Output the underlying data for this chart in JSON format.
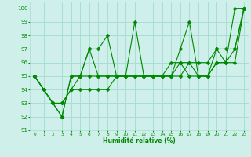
{
  "title": "",
  "xlabel": "Humidité relative (%)",
  "ylabel": "",
  "bg_color": "#cff0ea",
  "grid_color": "#a8ddd6",
  "line_color": "#008800",
  "marker": "D",
  "markersize": 2.5,
  "linewidth": 0.8,
  "ylim": [
    91,
    100.5
  ],
  "xlim": [
    -0.5,
    23.5
  ],
  "yticks": [
    91,
    92,
    93,
    94,
    95,
    96,
    97,
    98,
    99,
    100
  ],
  "xticks": [
    0,
    1,
    2,
    3,
    4,
    5,
    6,
    7,
    8,
    9,
    10,
    11,
    12,
    13,
    14,
    15,
    16,
    17,
    18,
    19,
    20,
    21,
    22,
    23
  ],
  "series": [
    [
      95,
      94,
      93,
      92,
      95,
      95,
      97,
      97,
      98,
      95,
      95,
      99,
      95,
      95,
      95,
      95,
      97,
      99,
      95,
      95,
      97,
      96,
      100,
      100
    ],
    [
      95,
      94,
      93,
      92,
      95,
      95,
      97,
      95,
      95,
      95,
      95,
      95,
      95,
      95,
      95,
      96,
      96,
      95,
      95,
      95,
      96,
      96,
      96,
      100
    ],
    [
      95,
      94,
      93,
      93,
      94,
      95,
      95,
      95,
      95,
      95,
      95,
      95,
      95,
      95,
      95,
      95,
      95,
      96,
      95,
      95,
      96,
      96,
      97,
      100
    ],
    [
      95,
      94,
      93,
      93,
      94,
      94,
      94,
      94,
      94,
      95,
      95,
      95,
      95,
      95,
      95,
      95,
      96,
      96,
      96,
      96,
      97,
      97,
      97,
      100
    ]
  ]
}
